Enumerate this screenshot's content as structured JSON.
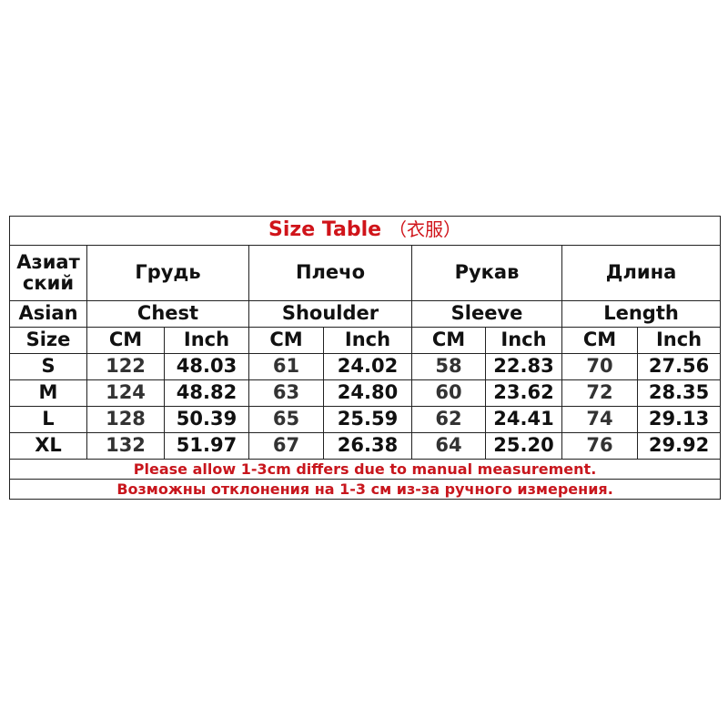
{
  "title": {
    "main": "Size Table",
    "sub": "（衣服）"
  },
  "header_ru": [
    "Азиат ский",
    "Грудь",
    "Плечо",
    "Рукав",
    "Длина"
  ],
  "header_en": [
    "Asian",
    "Chest",
    "Shoulder",
    "Sleeve",
    "Length"
  ],
  "unit_row": [
    "Size",
    "CM",
    "Inch",
    "CM",
    "Inch",
    "CM",
    "Inch",
    "CM",
    "Inch"
  ],
  "rows": [
    [
      "S",
      "122",
      "48.03",
      "61",
      "24.02",
      "58",
      "22.83",
      "70",
      "27.56"
    ],
    [
      "M",
      "124",
      "48.82",
      "63",
      "24.80",
      "60",
      "23.62",
      "72",
      "28.35"
    ],
    [
      "L",
      "128",
      "50.39",
      "65",
      "25.59",
      "62",
      "24.41",
      "74",
      "29.13"
    ],
    [
      "XL",
      "132",
      "51.97",
      "67",
      "26.38",
      "64",
      "25.20",
      "76",
      "29.92"
    ]
  ],
  "notes": [
    "Please allow 1-3cm differs due to manual measurement.",
    "Возможны отклонения на 1-3 см из-за ручного измерения."
  ],
  "colors": {
    "accent": "#d0141a",
    "border": "#222222"
  }
}
